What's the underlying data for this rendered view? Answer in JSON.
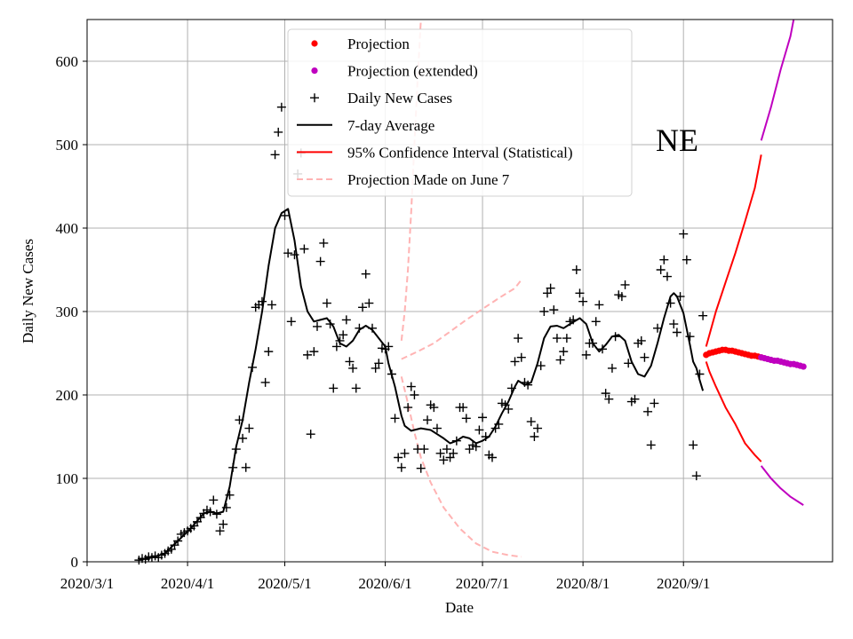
{
  "chart_data": {
    "type": "scatter+line",
    "region_label": "NE",
    "xlabel": "Date",
    "ylabel": "Daily New Cases",
    "ylim": [
      0,
      650
    ],
    "xlim_days": [
      0,
      230
    ],
    "x_ticks": [
      {
        "day": 0,
        "label": "2020/3/1"
      },
      {
        "day": 31,
        "label": "2020/4/1"
      },
      {
        "day": 61,
        "label": "2020/5/1"
      },
      {
        "day": 92,
        "label": "2020/6/1"
      },
      {
        "day": 122,
        "label": "2020/7/1"
      },
      {
        "day": 153,
        "label": "2020/8/1"
      },
      {
        "day": 184,
        "label": "2020/9/1"
      }
    ],
    "y_ticks": [
      0,
      100,
      200,
      300,
      400,
      500,
      600
    ],
    "grid": true,
    "legend_position": "top-center",
    "legend": [
      {
        "key": "projection",
        "label": "Projection"
      },
      {
        "key": "projection_ext",
        "label": "Projection (extended)"
      },
      {
        "key": "daily",
        "label": "Daily New Cases"
      },
      {
        "key": "avg",
        "label": "7-day Average"
      },
      {
        "key": "ci",
        "label": "95% Confidence Interval (Statistical)"
      },
      {
        "key": "june7",
        "label": "Projection Made on June 7"
      }
    ],
    "colors": {
      "projection": "#ff0000",
      "projection_ext": "#bf00bf",
      "daily": "#000000",
      "avg": "#000000",
      "ci": "#ff0000",
      "june7": "#ffb3b3",
      "grid": "#b0b0b0"
    },
    "series": {
      "daily_new_cases": [
        [
          16,
          2
        ],
        [
          17,
          4
        ],
        [
          18,
          3
        ],
        [
          19,
          6
        ],
        [
          20,
          5
        ],
        [
          21,
          7
        ],
        [
          22,
          5
        ],
        [
          23,
          8
        ],
        [
          24,
          10
        ],
        [
          25,
          13
        ],
        [
          26,
          15
        ],
        [
          27,
          20
        ],
        [
          28,
          25
        ],
        [
          29,
          33
        ],
        [
          30,
          35
        ],
        [
          31,
          37
        ],
        [
          32,
          40
        ],
        [
          33,
          43
        ],
        [
          34,
          48
        ],
        [
          35,
          53
        ],
        [
          36,
          58
        ],
        [
          37,
          62
        ],
        [
          38,
          60
        ],
        [
          39,
          74
        ],
        [
          40,
          57
        ],
        [
          41,
          37
        ],
        [
          42,
          45
        ],
        [
          43,
          65
        ],
        [
          44,
          80
        ],
        [
          45,
          113
        ],
        [
          46,
          135
        ],
        [
          47,
          170
        ],
        [
          48,
          148
        ],
        [
          49,
          113
        ],
        [
          50,
          160
        ],
        [
          51,
          233
        ],
        [
          52,
          305
        ],
        [
          53,
          308
        ],
        [
          54,
          312
        ],
        [
          55,
          215
        ],
        [
          56,
          252
        ],
        [
          57,
          308
        ],
        [
          58,
          488
        ],
        [
          59,
          515
        ],
        [
          60,
          545
        ],
        [
          61,
          415
        ],
        [
          62,
          370
        ],
        [
          63,
          288
        ],
        [
          64,
          368
        ],
        [
          65,
          465
        ],
        [
          66,
          490
        ],
        [
          67,
          375
        ],
        [
          68,
          248
        ],
        [
          69,
          153
        ],
        [
          70,
          252
        ],
        [
          71,
          282
        ],
        [
          72,
          360
        ],
        [
          73,
          382
        ],
        [
          74,
          310
        ],
        [
          75,
          285
        ],
        [
          76,
          208
        ],
        [
          77,
          258
        ],
        [
          78,
          265
        ],
        [
          79,
          272
        ],
        [
          80,
          290
        ],
        [
          81,
          240
        ],
        [
          82,
          232
        ],
        [
          83,
          208
        ],
        [
          84,
          280
        ],
        [
          85,
          305
        ],
        [
          86,
          345
        ],
        [
          87,
          310
        ],
        [
          88,
          280
        ],
        [
          89,
          232
        ],
        [
          90,
          238
        ],
        [
          91,
          256
        ],
        [
          92,
          255
        ],
        [
          93,
          258
        ],
        [
          94,
          225
        ],
        [
          95,
          172
        ],
        [
          96,
          125
        ],
        [
          97,
          113
        ],
        [
          98,
          130
        ],
        [
          99,
          185
        ],
        [
          100,
          210
        ],
        [
          101,
          200
        ],
        [
          102,
          135
        ],
        [
          103,
          112
        ],
        [
          104,
          135
        ],
        [
          105,
          170
        ],
        [
          106,
          188
        ],
        [
          107,
          185
        ],
        [
          108,
          160
        ],
        [
          109,
          130
        ],
        [
          110,
          122
        ],
        [
          111,
          135
        ],
        [
          112,
          125
        ],
        [
          113,
          130
        ],
        [
          114,
          145
        ],
        [
          115,
          185
        ],
        [
          116,
          185
        ],
        [
          117,
          172
        ],
        [
          118,
          135
        ],
        [
          119,
          140
        ],
        [
          120,
          138
        ],
        [
          121,
          158
        ],
        [
          122,
          173
        ],
        [
          123,
          150
        ],
        [
          124,
          128
        ],
        [
          125,
          125
        ],
        [
          126,
          160
        ],
        [
          127,
          165
        ],
        [
          128,
          190
        ],
        [
          129,
          188
        ],
        [
          130,
          183
        ],
        [
          131,
          208
        ],
        [
          132,
          240
        ],
        [
          133,
          268
        ],
        [
          134,
          245
        ],
        [
          135,
          215
        ],
        [
          136,
          212
        ],
        [
          137,
          168
        ],
        [
          138,
          150
        ],
        [
          139,
          160
        ],
        [
          140,
          235
        ],
        [
          141,
          300
        ],
        [
          142,
          322
        ],
        [
          143,
          328
        ],
        [
          144,
          302
        ],
        [
          145,
          268
        ],
        [
          146,
          242
        ],
        [
          147,
          252
        ],
        [
          148,
          268
        ],
        [
          149,
          288
        ],
        [
          150,
          290
        ],
        [
          151,
          350
        ],
        [
          152,
          322
        ],
        [
          153,
          312
        ],
        [
          154,
          248
        ],
        [
          155,
          262
        ],
        [
          156,
          262
        ],
        [
          157,
          288
        ],
        [
          158,
          308
        ],
        [
          159,
          255
        ],
        [
          160,
          202
        ],
        [
          161,
          195
        ],
        [
          162,
          232
        ],
        [
          163,
          270
        ],
        [
          164,
          320
        ],
        [
          165,
          318
        ],
        [
          166,
          332
        ],
        [
          167,
          238
        ],
        [
          168,
          192
        ],
        [
          169,
          195
        ],
        [
          170,
          262
        ],
        [
          171,
          265
        ],
        [
          172,
          245
        ],
        [
          173,
          180
        ],
        [
          174,
          140
        ],
        [
          175,
          190
        ],
        [
          176,
          280
        ],
        [
          177,
          350
        ],
        [
          178,
          362
        ],
        [
          179,
          342
        ],
        [
          180,
          310
        ],
        [
          181,
          285
        ],
        [
          182,
          275
        ],
        [
          183,
          318
        ],
        [
          184,
          393
        ],
        [
          185,
          362
        ],
        [
          186,
          270
        ],
        [
          187,
          140
        ],
        [
          188,
          103
        ],
        [
          189,
          225
        ],
        [
          190,
          295
        ]
      ],
      "seven_day_average": [
        [
          16,
          3
        ],
        [
          20,
          5
        ],
        [
          24,
          10
        ],
        [
          28,
          25
        ],
        [
          32,
          40
        ],
        [
          36,
          58
        ],
        [
          38,
          60
        ],
        [
          40,
          58
        ],
        [
          42,
          60
        ],
        [
          44,
          90
        ],
        [
          46,
          138
        ],
        [
          48,
          170
        ],
        [
          50,
          215
        ],
        [
          52,
          255
        ],
        [
          54,
          300
        ],
        [
          56,
          355
        ],
        [
          58,
          400
        ],
        [
          60,
          418
        ],
        [
          62,
          423
        ],
        [
          64,
          385
        ],
        [
          66,
          330
        ],
        [
          68,
          300
        ],
        [
          70,
          288
        ],
        [
          72,
          290
        ],
        [
          74,
          292
        ],
        [
          76,
          282
        ],
        [
          78,
          262
        ],
        [
          80,
          258
        ],
        [
          82,
          265
        ],
        [
          84,
          278
        ],
        [
          86,
          283
        ],
        [
          88,
          278
        ],
        [
          90,
          268
        ],
        [
          92,
          258
        ],
        [
          93,
          238
        ],
        [
          95,
          210
        ],
        [
          97,
          175
        ],
        [
          98,
          163
        ],
        [
          100,
          157
        ],
        [
          103,
          160
        ],
        [
          106,
          158
        ],
        [
          108,
          153
        ],
        [
          110,
          148
        ],
        [
          112,
          142
        ],
        [
          114,
          145
        ],
        [
          116,
          150
        ],
        [
          118,
          148
        ],
        [
          120,
          142
        ],
        [
          122,
          145
        ],
        [
          124,
          150
        ],
        [
          126,
          162
        ],
        [
          128,
          178
        ],
        [
          130,
          192
        ],
        [
          132,
          210
        ],
        [
          133,
          217
        ],
        [
          135,
          212
        ],
        [
          137,
          215
        ],
        [
          139,
          238
        ],
        [
          141,
          268
        ],
        [
          143,
          282
        ],
        [
          145,
          283
        ],
        [
          147,
          280
        ],
        [
          149,
          285
        ],
        [
          152,
          292
        ],
        [
          154,
          285
        ],
        [
          156,
          262
        ],
        [
          158,
          252
        ],
        [
          160,
          260
        ],
        [
          162,
          270
        ],
        [
          164,
          272
        ],
        [
          166,
          265
        ],
        [
          168,
          240
        ],
        [
          170,
          225
        ],
        [
          172,
          222
        ],
        [
          174,
          235
        ],
        [
          176,
          262
        ],
        [
          178,
          292
        ],
        [
          180,
          318
        ],
        [
          181,
          322
        ],
        [
          182,
          318
        ],
        [
          184,
          298
        ],
        [
          186,
          260
        ],
        [
          187,
          240
        ],
        [
          188,
          232
        ],
        [
          189,
          218
        ],
        [
          190,
          205
        ]
      ],
      "projection": [
        [
          191,
          248
        ],
        [
          192,
          250
        ],
        [
          193,
          251
        ],
        [
          194,
          252
        ],
        [
          195,
          253
        ],
        [
          196,
          254
        ],
        [
          197,
          254
        ],
        [
          198,
          253
        ],
        [
          199,
          253
        ],
        [
          200,
          252
        ],
        [
          201,
          251
        ],
        [
          202,
          250
        ],
        [
          203,
          249
        ],
        [
          204,
          248
        ],
        [
          205,
          247
        ],
        [
          206,
          247
        ],
        [
          207,
          246
        ],
        [
          208,
          245
        ]
      ],
      "projection_extended": [
        [
          208,
          245
        ],
        [
          209,
          244
        ],
        [
          210,
          243
        ],
        [
          211,
          242
        ],
        [
          212,
          241
        ],
        [
          213,
          241
        ],
        [
          214,
          240
        ],
        [
          215,
          239
        ],
        [
          216,
          238
        ],
        [
          217,
          237
        ],
        [
          218,
          237
        ],
        [
          219,
          236
        ],
        [
          220,
          235
        ],
        [
          221,
          234
        ]
      ],
      "ci_upper": [
        [
          191,
          258
        ],
        [
          192,
          272
        ],
        [
          194,
          300
        ],
        [
          197,
          335
        ],
        [
          200,
          370
        ],
        [
          203,
          408
        ],
        [
          206,
          448
        ],
        [
          208,
          488
        ]
      ],
      "ci_lower": [
        [
          191,
          240
        ],
        [
          192,
          228
        ],
        [
          194,
          210
        ],
        [
          197,
          185
        ],
        [
          200,
          165
        ],
        [
          203,
          142
        ],
        [
          206,
          128
        ],
        [
          208,
          120
        ]
      ],
      "ci_upper_extended": [
        [
          208,
          505
        ],
        [
          211,
          545
        ],
        [
          214,
          590
        ],
        [
          217,
          630
        ],
        [
          218,
          650
        ]
      ],
      "ci_lower_extended": [
        [
          208,
          115
        ],
        [
          211,
          100
        ],
        [
          214,
          88
        ],
        [
          217,
          78
        ],
        [
          221,
          68
        ]
      ],
      "june7_upper": [
        [
          97,
          265
        ],
        [
          98,
          300
        ],
        [
          99,
          350
        ],
        [
          100,
          420
        ],
        [
          101,
          500
        ],
        [
          102,
          580
        ],
        [
          103,
          650
        ]
      ],
      "june7_mid": [
        [
          97,
          243
        ],
        [
          102,
          252
        ],
        [
          107,
          262
        ],
        [
          112,
          276
        ],
        [
          117,
          290
        ],
        [
          122,
          303
        ],
        [
          127,
          316
        ],
        [
          132,
          328
        ],
        [
          134,
          338
        ]
      ],
      "june7_lower": [
        [
          97,
          222
        ],
        [
          99,
          190
        ],
        [
          101,
          155
        ],
        [
          103,
          125
        ],
        [
          106,
          95
        ],
        [
          110,
          65
        ],
        [
          115,
          40
        ],
        [
          120,
          22
        ],
        [
          125,
          12
        ],
        [
          130,
          8
        ],
        [
          134,
          6
        ]
      ]
    }
  }
}
